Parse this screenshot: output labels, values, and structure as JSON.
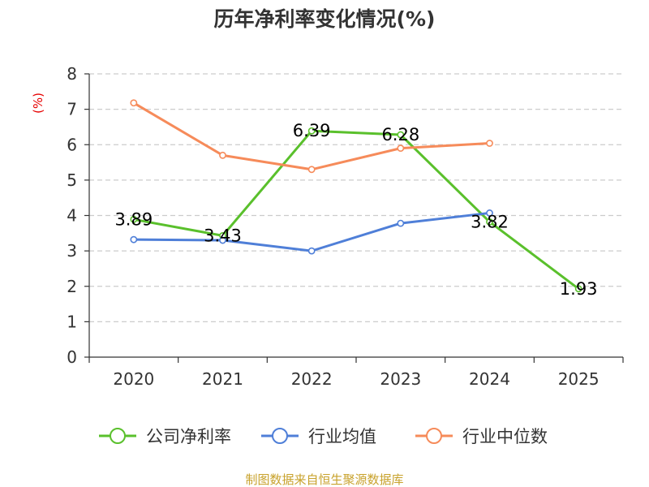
{
  "chart_data": {
    "type": "line",
    "title": "历年净利率变化情况(%)",
    "ylabel": "(%)",
    "xlabel": "",
    "categories": [
      "2020",
      "2021",
      "2022",
      "2023",
      "2024",
      "2025"
    ],
    "ylim": [
      0,
      8
    ],
    "yticks": [
      0,
      1,
      2,
      3,
      4,
      5,
      6,
      7,
      8
    ],
    "grid": true,
    "legend_position": "bottom",
    "series": [
      {
        "name": "公司净利率",
        "color": "#5ac02c",
        "values": [
          3.89,
          3.43,
          6.39,
          6.28,
          3.82,
          1.93
        ],
        "labels": [
          "3.89",
          "3.43",
          "6.39",
          "6.28",
          "3.82",
          "1.93"
        ]
      },
      {
        "name": "行业均值",
        "color": "#4f7fd8",
        "values": [
          3.32,
          3.3,
          3.0,
          3.78,
          4.07,
          null
        ]
      },
      {
        "name": "行业中位数",
        "color": "#f68b5a",
        "values": [
          7.18,
          5.7,
          5.3,
          5.9,
          6.04,
          null
        ]
      }
    ]
  },
  "source": "制图数据来自恒生聚源数据库",
  "colors": {
    "axis": "#333333",
    "grid": "#cccccc",
    "unit": "#e60000",
    "source": "#c8a22c"
  }
}
